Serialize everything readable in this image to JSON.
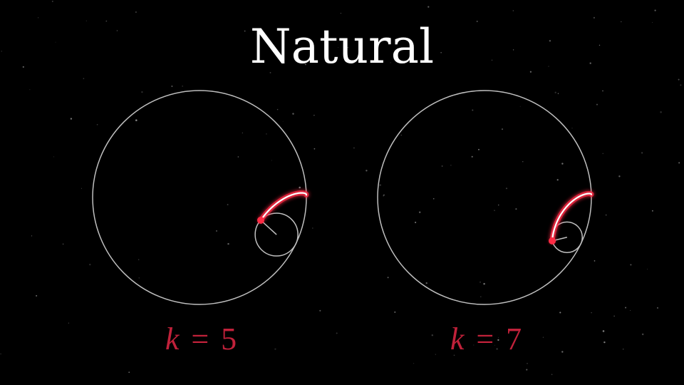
{
  "title": "Natural",
  "colors": {
    "background": "#000000",
    "circle": "#bfbfbf",
    "trace": "#ff2b44",
    "trace_core": "#ffffff",
    "label": "#c0213a",
    "title": "#ffffff"
  },
  "panels": [
    {
      "k": 5,
      "label": "k = 5",
      "label_var": "k",
      "label_op": "=",
      "label_val": "5",
      "rolled_angle_deg": 28
    },
    {
      "k": 7,
      "label": "k = 7",
      "label_var": "k",
      "label_op": "=",
      "label_val": "7",
      "rolled_angle_deg": 28
    }
  ]
}
